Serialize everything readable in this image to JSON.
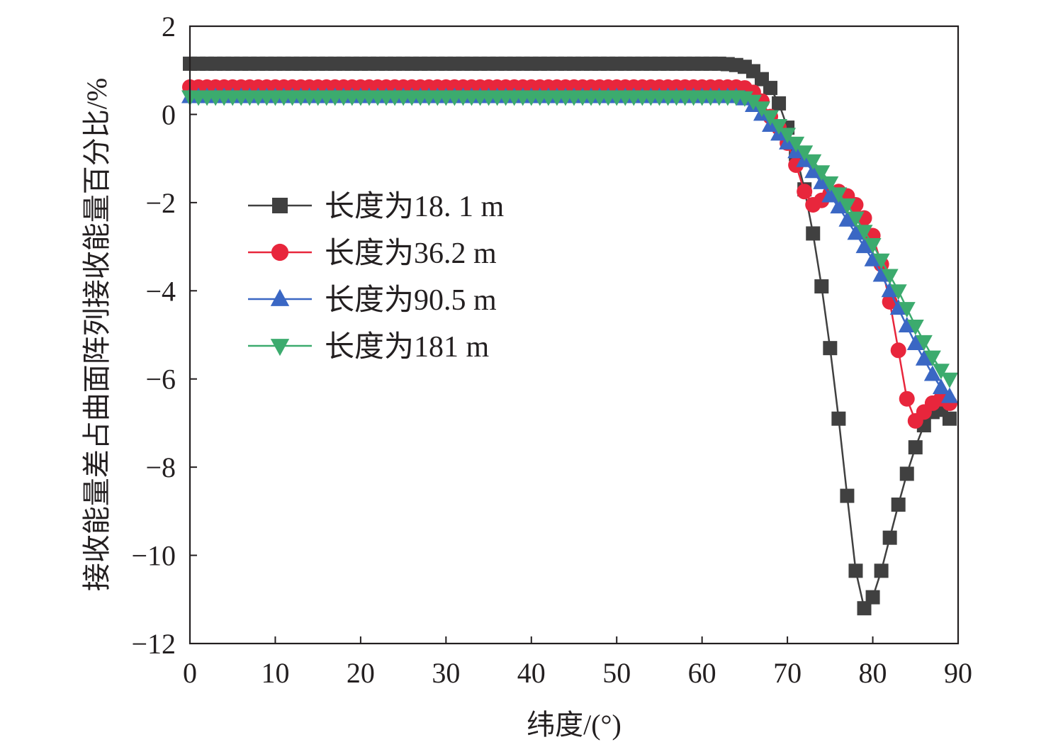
{
  "chart_data": {
    "type": "line",
    "title": "",
    "xlabel": "纬度/(°)",
    "ylabel": "接收能量差占曲面阵列接收能量百分比/%",
    "xlim": [
      0,
      90
    ],
    "ylim": [
      -12,
      2
    ],
    "xticks": [
      0,
      10,
      20,
      30,
      40,
      50,
      60,
      70,
      80,
      90
    ],
    "yticks": [
      2,
      0,
      -2,
      -4,
      -6,
      -8,
      -10,
      -12
    ],
    "xtick_labels": [
      "0",
      "10",
      "20",
      "30",
      "40",
      "50",
      "60",
      "70",
      "80",
      "90"
    ],
    "ytick_labels": [
      "2",
      "0",
      "−2",
      "−4",
      "−6",
      "−8",
      "−10",
      "−12"
    ],
    "legend_position": "center-left",
    "x": [
      0,
      1,
      2,
      3,
      4,
      5,
      6,
      7,
      8,
      9,
      10,
      11,
      12,
      13,
      14,
      15,
      16,
      17,
      18,
      19,
      20,
      21,
      22,
      23,
      24,
      25,
      26,
      27,
      28,
      29,
      30,
      31,
      32,
      33,
      34,
      35,
      36,
      37,
      38,
      39,
      40,
      41,
      42,
      43,
      44,
      45,
      46,
      47,
      48,
      49,
      50,
      51,
      52,
      53,
      54,
      55,
      56,
      57,
      58,
      59,
      60,
      61,
      62,
      63,
      64,
      65,
      66,
      67,
      68,
      69,
      70,
      71,
      72,
      73,
      74,
      75,
      76,
      77,
      78,
      79,
      80,
      81,
      82,
      83,
      84,
      85,
      86,
      87,
      88,
      89
    ],
    "series": [
      {
        "name": "长度为18. 1 m",
        "color": "#404040",
        "marker": "square",
        "values": [
          1.15,
          1.15,
          1.15,
          1.15,
          1.15,
          1.15,
          1.15,
          1.15,
          1.15,
          1.15,
          1.15,
          1.15,
          1.15,
          1.15,
          1.15,
          1.15,
          1.15,
          1.15,
          1.15,
          1.15,
          1.15,
          1.15,
          1.15,
          1.15,
          1.15,
          1.15,
          1.15,
          1.15,
          1.15,
          1.15,
          1.15,
          1.15,
          1.15,
          1.15,
          1.15,
          1.15,
          1.15,
          1.15,
          1.15,
          1.15,
          1.15,
          1.15,
          1.15,
          1.15,
          1.15,
          1.15,
          1.15,
          1.15,
          1.15,
          1.15,
          1.15,
          1.15,
          1.15,
          1.15,
          1.15,
          1.15,
          1.15,
          1.15,
          1.15,
          1.15,
          1.15,
          1.15,
          1.15,
          1.14,
          1.12,
          1.08,
          0.98,
          0.8,
          0.6,
          0.25,
          -0.3,
          -0.9,
          -1.7,
          -2.7,
          -3.9,
          -5.3,
          -6.9,
          -8.65,
          -10.35,
          -11.2,
          -10.95,
          -10.35,
          -9.6,
          -8.85,
          -8.15,
          -7.55,
          -7.05,
          -6.75,
          -6.7,
          -6.9
        ]
      },
      {
        "name": "长度为36.2 m",
        "color": "#e8263c",
        "marker": "circle",
        "values": [
          0.62,
          0.62,
          0.62,
          0.62,
          0.62,
          0.62,
          0.62,
          0.62,
          0.62,
          0.62,
          0.62,
          0.62,
          0.62,
          0.62,
          0.62,
          0.62,
          0.62,
          0.62,
          0.62,
          0.62,
          0.62,
          0.62,
          0.62,
          0.62,
          0.62,
          0.62,
          0.62,
          0.62,
          0.62,
          0.62,
          0.62,
          0.62,
          0.62,
          0.62,
          0.62,
          0.62,
          0.62,
          0.62,
          0.62,
          0.62,
          0.62,
          0.62,
          0.62,
          0.62,
          0.62,
          0.62,
          0.62,
          0.62,
          0.62,
          0.62,
          0.62,
          0.62,
          0.62,
          0.62,
          0.62,
          0.62,
          0.62,
          0.62,
          0.62,
          0.62,
          0.62,
          0.62,
          0.62,
          0.62,
          0.62,
          0.6,
          0.5,
          0.3,
          -0.05,
          -0.3,
          -0.65,
          -1.15,
          -1.75,
          -2.05,
          -1.95,
          -1.8,
          -1.75,
          -1.85,
          -2.05,
          -2.35,
          -2.75,
          -3.4,
          -4.25,
          -5.35,
          -6.45,
          -6.95,
          -6.75,
          -6.55,
          -6.45,
          -6.55
        ]
      },
      {
        "name": "长度为90.5 m",
        "color": "#3a67c4",
        "marker": "triangle-up",
        "values": [
          0.4,
          0.4,
          0.4,
          0.4,
          0.4,
          0.4,
          0.4,
          0.4,
          0.4,
          0.4,
          0.4,
          0.4,
          0.4,
          0.4,
          0.4,
          0.4,
          0.4,
          0.4,
          0.4,
          0.4,
          0.4,
          0.4,
          0.4,
          0.4,
          0.4,
          0.4,
          0.4,
          0.4,
          0.4,
          0.4,
          0.4,
          0.4,
          0.4,
          0.4,
          0.4,
          0.4,
          0.4,
          0.4,
          0.4,
          0.4,
          0.4,
          0.4,
          0.4,
          0.4,
          0.4,
          0.4,
          0.4,
          0.4,
          0.4,
          0.4,
          0.4,
          0.4,
          0.4,
          0.4,
          0.4,
          0.4,
          0.4,
          0.4,
          0.4,
          0.4,
          0.4,
          0.4,
          0.4,
          0.4,
          0.4,
          0.35,
          0.2,
          0.0,
          -0.25,
          -0.45,
          -0.65,
          -0.85,
          -1.05,
          -1.3,
          -1.55,
          -1.85,
          -2.1,
          -2.4,
          -2.7,
          -3.0,
          -3.3,
          -3.65,
          -4.0,
          -4.4,
          -4.8,
          -5.2,
          -5.55,
          -5.9,
          -6.2,
          -6.4
        ]
      },
      {
        "name": "长度为181 m",
        "color": "#3cab6e",
        "marker": "triangle-down",
        "values": [
          0.4,
          0.4,
          0.4,
          0.4,
          0.4,
          0.4,
          0.4,
          0.4,
          0.4,
          0.4,
          0.4,
          0.4,
          0.4,
          0.4,
          0.4,
          0.4,
          0.4,
          0.4,
          0.4,
          0.4,
          0.4,
          0.4,
          0.4,
          0.4,
          0.4,
          0.4,
          0.4,
          0.4,
          0.4,
          0.4,
          0.4,
          0.4,
          0.4,
          0.4,
          0.4,
          0.4,
          0.4,
          0.4,
          0.4,
          0.4,
          0.4,
          0.4,
          0.4,
          0.4,
          0.4,
          0.4,
          0.4,
          0.4,
          0.4,
          0.4,
          0.4,
          0.4,
          0.4,
          0.4,
          0.4,
          0.4,
          0.4,
          0.4,
          0.4,
          0.4,
          0.4,
          0.4,
          0.4,
          0.4,
          0.4,
          0.38,
          0.3,
          0.15,
          -0.05,
          -0.25,
          -0.45,
          -0.65,
          -0.85,
          -1.05,
          -1.3,
          -1.55,
          -1.8,
          -2.05,
          -2.35,
          -2.65,
          -2.95,
          -3.3,
          -3.65,
          -4.0,
          -4.4,
          -4.8,
          -5.15,
          -5.5,
          -5.8,
          -6.0
        ]
      }
    ]
  }
}
